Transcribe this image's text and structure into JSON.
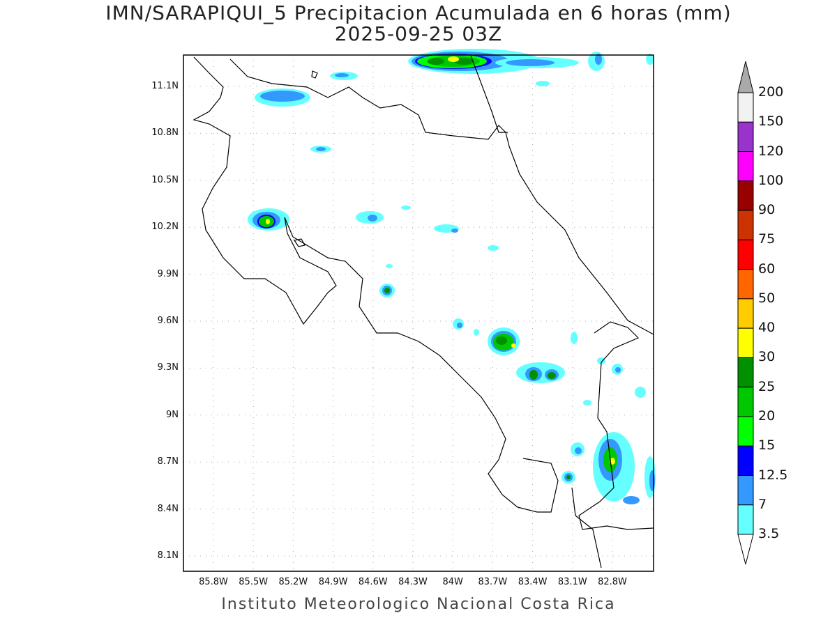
{
  "title": {
    "line1": "IMN/SARAPIQUI_5 Precipitacion Acumulada en 6 horas (mm)",
    "line2": "2025-09-25 03Z"
  },
  "footer": "Instituto Meteorologico Nacional Costa Rica",
  "axes": {
    "lon_ticks": [
      "85.8W",
      "85.5W",
      "85.2W",
      "84.9W",
      "84.6W",
      "84.3W",
      "84W",
      "83.7W",
      "83.4W",
      "83.1W",
      "82.8W"
    ],
    "lat_ticks": [
      "11.1N",
      "10.8N",
      "10.5N",
      "10.2N",
      "9.9N",
      "9.6N",
      "9.3N",
      "9N",
      "8.7N",
      "8.4N",
      "8.1N"
    ]
  },
  "colorbar": {
    "labels": [
      "200",
      "150",
      "120",
      "100",
      "90",
      "75",
      "60",
      "50",
      "40",
      "30",
      "25",
      "20",
      "15",
      "12.5",
      "7",
      "3.5"
    ],
    "colors": [
      "#f2f2f2",
      "#9933cc",
      "#ff00ff",
      "#990000",
      "#cc3300",
      "#ff0000",
      "#ff6600",
      "#ffcc00",
      "#ffff00",
      "#009000",
      "#00c800",
      "#00ff00",
      "#0000ff",
      "#3399ff",
      "#66ffff"
    ],
    "over_color": "#aaaaaa"
  }
}
